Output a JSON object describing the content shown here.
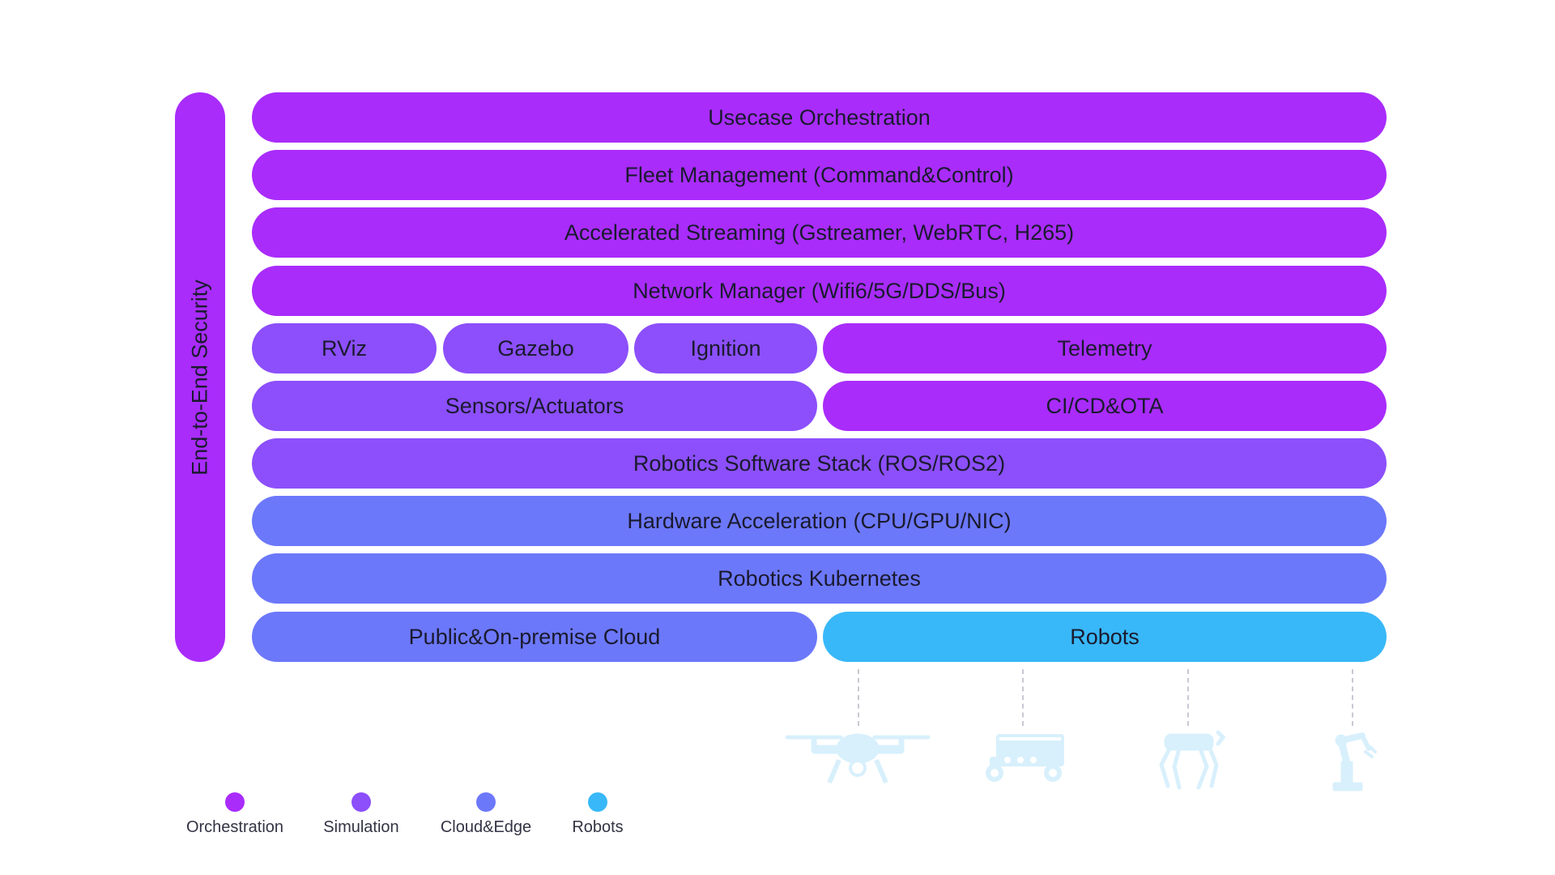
{
  "security": {
    "label": "End-to-End Security"
  },
  "layers": {
    "usecase": "Usecase Orchestration",
    "fleet": "Fleet Management (Command&Control)",
    "streaming": "Accelerated Streaming (Gstreamer, WebRTC, H265)",
    "network": "Network Manager (Wifi6/5G/DDS/Bus)",
    "rviz": "RViz",
    "gazebo": "Gazebo",
    "ignition": "Ignition",
    "telemetry": "Telemetry",
    "sensors": "Sensors/Actuators",
    "cicd": "CI/CD&OTA",
    "ros": "Robotics Software Stack (ROS/ROS2)",
    "hardware": "Hardware Acceleration (CPU/GPU/NIC)",
    "kubernetes": "Robotics Kubernetes",
    "cloud": "Public&On-premise Cloud",
    "robots": "Robots"
  },
  "robot_icons": [
    "drone-icon",
    "rover-icon",
    "quadruped-robot-icon",
    "robotic-arm-icon"
  ],
  "legend": [
    {
      "label": "Orchestration",
      "color": "#a92cfb"
    },
    {
      "label": "Simulation",
      "color": "#8c4ffb"
    },
    {
      "label": "Cloud&Edge",
      "color": "#6c78fa"
    },
    {
      "label": "Robots",
      "color": "#38b8f8"
    }
  ],
  "colors": {
    "orchestration": "#a92cfb",
    "simulation": "#8c4ffb",
    "cloud_edge": "#6c78fa",
    "robots": "#38b8f8",
    "icon": "#d8f0fc"
  }
}
